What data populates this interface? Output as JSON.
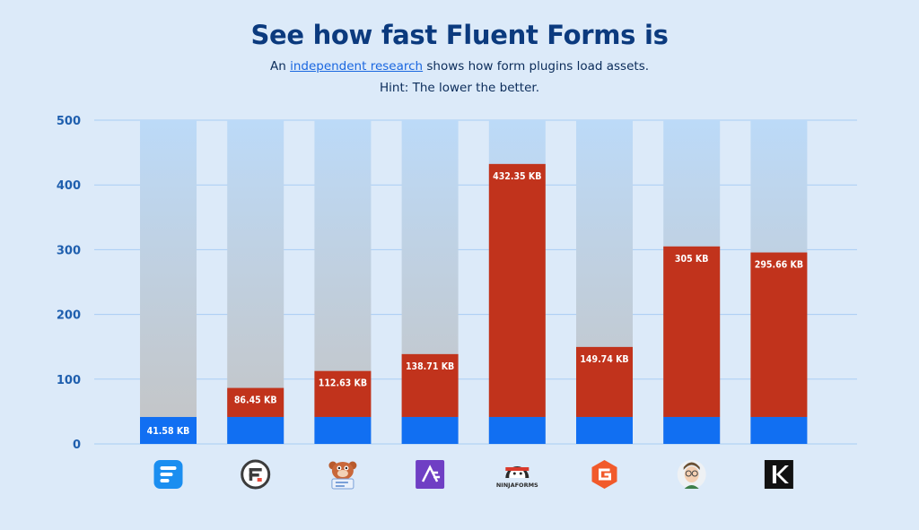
{
  "header": {
    "title": "See how fast Fluent Forms is",
    "subtitle_prefix": "An ",
    "subtitle_link": "independent research",
    "subtitle_suffix": " shows how form plugins load assets.",
    "hint": "Hint: The lower the better."
  },
  "colors": {
    "background": "#dceaf9",
    "bar_track_top": "#bcdaf8",
    "bar_track_bottom": "#c4c4c4",
    "bar_value": "#c1331c",
    "bar_base": "#116ff2",
    "grid": "#a9cdf4",
    "title": "#0b3a7e",
    "link": "#1a67e0"
  },
  "chart_data": {
    "type": "bar",
    "ylim": [
      0,
      500
    ],
    "yticks": [
      0,
      100,
      200,
      300,
      400,
      500
    ],
    "grid": true,
    "baseline_value": 41.58,
    "series": [
      {
        "values": [
          41.58,
          86.45,
          112.63,
          138.71,
          432.35,
          149.74,
          305,
          295.66
        ],
        "labels": [
          "41.58 KB",
          "86.45 KB",
          "112.63 KB",
          "138.71 KB",
          "432.35 KB",
          "149.74 KB",
          "305 KB",
          "295.66 KB"
        ]
      }
    ],
    "category_icons": [
      "fluent-forms-icon",
      "formidable-forms-icon",
      "wpforms-icon",
      "everest-forms-icon",
      "ninja-forms-icon",
      "gravity-forms-icon",
      "caldera-forms-icon",
      "kali-forms-icon"
    ],
    "ninja_logo_text": "NINJAFORMS"
  }
}
